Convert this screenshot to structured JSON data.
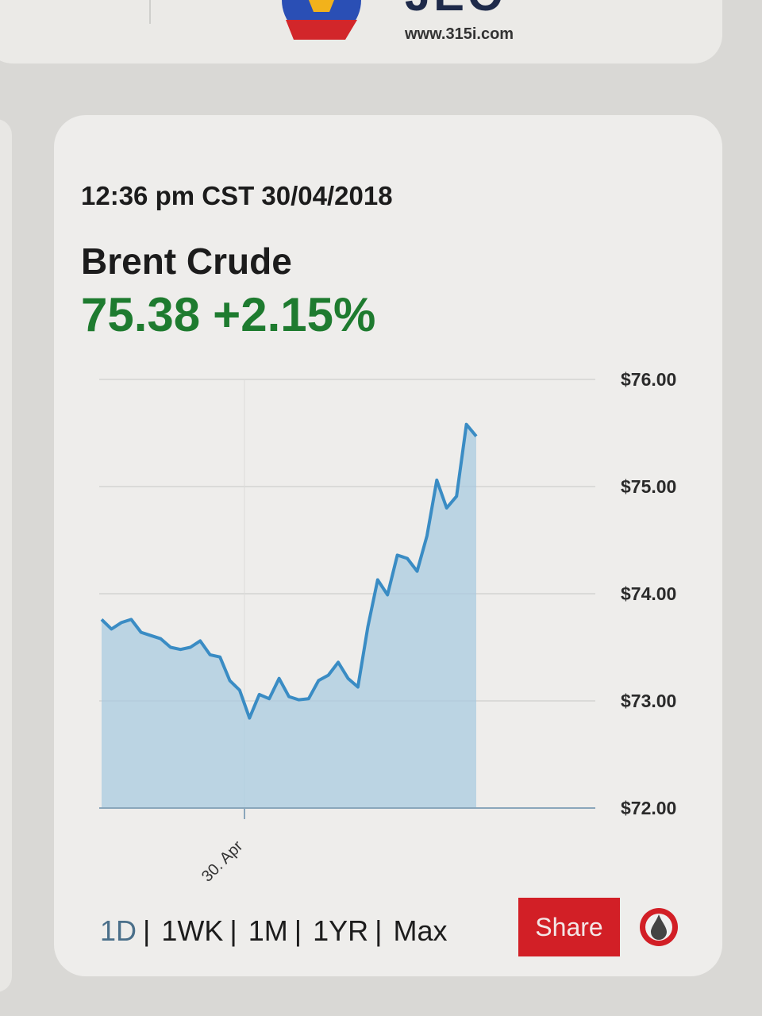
{
  "header": {
    "logo_text": "JEO",
    "logo_url": "www.315i.com"
  },
  "widget": {
    "timestamp": "12:36 pm CST 30/04/2018",
    "name": "Brent Crude",
    "price": "75.38",
    "change": "+2.15%",
    "price_color": "#1e7b2f",
    "ranges": [
      "1D",
      "1WK",
      "1M",
      "1YR",
      "Max"
    ],
    "active_range": "1D",
    "share_label": "Share",
    "share_color": "#d21f26",
    "oil_drop_icon": "oil-drop-icon"
  },
  "chart_data": {
    "type": "area",
    "title": "",
    "xlabel": "",
    "ylabel": "",
    "ylim": [
      72,
      76
    ],
    "y_ticks": [
      "$72.00",
      "$73.00",
      "$74.00",
      "$75.00",
      "$76.00"
    ],
    "x_ticks": [
      "30. Apr"
    ],
    "grid": true,
    "line_color": "#3a8cc4",
    "series": [
      {
        "values": [
          73.76,
          73.67,
          73.73,
          73.76,
          73.64,
          73.61,
          73.58,
          73.5,
          73.48,
          73.5,
          73.56,
          73.43,
          73.41,
          73.19,
          73.1,
          72.84,
          73.06,
          73.02,
          73.21,
          73.04,
          73.01,
          73.02,
          73.19,
          73.24,
          73.36,
          73.21,
          73.13,
          73.69,
          74.13,
          73.99,
          74.36,
          74.33,
          74.21,
          74.54,
          75.06,
          74.8,
          74.91,
          75.58,
          75.47
        ]
      }
    ]
  }
}
